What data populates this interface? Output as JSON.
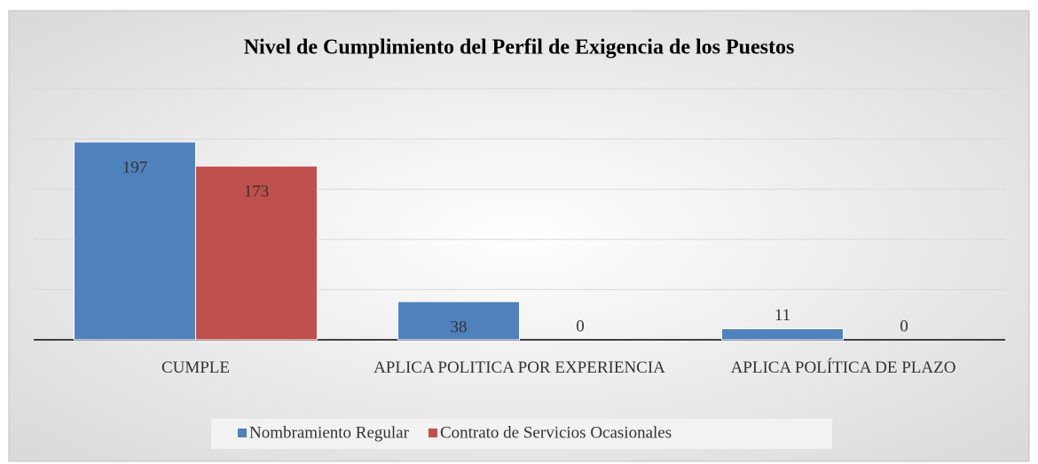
{
  "chart_data": {
    "type": "bar",
    "title": "Nivel de Cumplimiento del Perfil de Exigencia de los Puestos",
    "categories": [
      "CUMPLE",
      "APLICA POLITICA POR EXPERIENCIA",
      "APLICA POLÍTICA DE PLAZO"
    ],
    "series": [
      {
        "name": "Nombramiento Regular",
        "color": "#4f81bd",
        "values": [
          197,
          38,
          11
        ]
      },
      {
        "name": "Contrato de Servicios Ocasionales",
        "color": "#c0504d",
        "values": [
          173,
          0,
          0
        ]
      }
    ],
    "ylim": [
      0,
      250
    ],
    "yticks": [
      0,
      50,
      100,
      150,
      200,
      250
    ],
    "grid": true,
    "legend": "bottom"
  }
}
